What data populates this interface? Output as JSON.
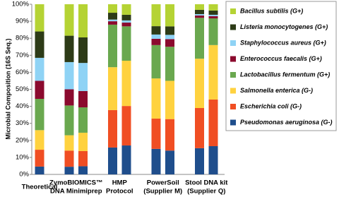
{
  "chart_data": {
    "type": "stacked_bar",
    "y_label": "Microbial Composition (16S Seq.)",
    "categories": [
      [
        "Theoretical"
      ],
      [
        "ZymoBIOMICS™",
        "DNA Minimiprep"
      ],
      null,
      [
        "HMP",
        "Protocol"
      ],
      null,
      [
        "PowerSoil",
        "(Supplier M)"
      ],
      null,
      [
        "Stool DNA kit",
        "(Supplier Q)"
      ],
      null
    ],
    "series": [
      {
        "name": "Pseudomonas aeruginosa (G-)",
        "color": "#1f4e8c",
        "values": [
          4.6,
          4.5,
          4.8,
          15.8,
          17,
          15,
          14,
          15.4,
          16.6
        ]
      },
      {
        "name": "Escherichia coli (G-)",
        "color": "#f04e23",
        "values": [
          9.9,
          9.5,
          8.9,
          22,
          23.2,
          17.8,
          18.5,
          23.6,
          27.4
        ]
      },
      {
        "name": "Salmonella enterica (G-)",
        "color": "#ffd23f",
        "values": [
          11.5,
          9,
          10.8,
          25.2,
          26.6,
          23.6,
          22.5,
          29,
          32
        ]
      },
      {
        "name": "Lactobacillus fermentum (G+)",
        "color": "#6aa84f",
        "values": [
          18.4,
          17.5,
          14.9,
          25,
          20.2,
          19.6,
          20,
          24,
          15.7
        ]
      },
      {
        "name": "Enterococcus faecalis (G+)",
        "color": "#8b0a2e",
        "values": [
          10.6,
          9.5,
          9.6,
          2,
          2.2,
          3.7,
          4.5,
          1.4,
          1.3
        ]
      },
      {
        "name": "Staphylococcus aureus (G+)",
        "color": "#8fd3f5",
        "values": [
          13.5,
          16,
          16.5,
          1,
          1.3,
          2.5,
          2.5,
          0.8,
          0.8
        ]
      },
      {
        "name": "Listeria monocytogenes (G+)",
        "color": "#2d3b17",
        "values": [
          15.5,
          15.5,
          15,
          4,
          3.3,
          4.9,
          5,
          2.5,
          2.5
        ]
      },
      {
        "name": "Bacillus subtilis (G+)",
        "color": "#b5d334",
        "values": [
          16,
          18.5,
          19.5,
          5,
          6.2,
          12.9,
          13,
          3.3,
          3.7
        ]
      }
    ],
    "ylim": [
      0,
      100
    ],
    "yticks": [
      {
        "value": 0,
        "label": "0%"
      },
      {
        "value": 10,
        "label": "10%"
      },
      {
        "value": 20,
        "label": "20%"
      },
      {
        "value": 30,
        "label": "30%"
      },
      {
        "value": 40,
        "label": "40%"
      },
      {
        "value": 50,
        "label": "50%"
      },
      {
        "value": 60,
        "label": "60%"
      },
      {
        "value": 70,
        "label": "70%"
      },
      {
        "value": 80,
        "label": "80%"
      },
      {
        "value": 90,
        "label": "90%"
      },
      {
        "value": 100,
        "label": "100%"
      }
    ],
    "grid": false,
    "legend": "right"
  }
}
